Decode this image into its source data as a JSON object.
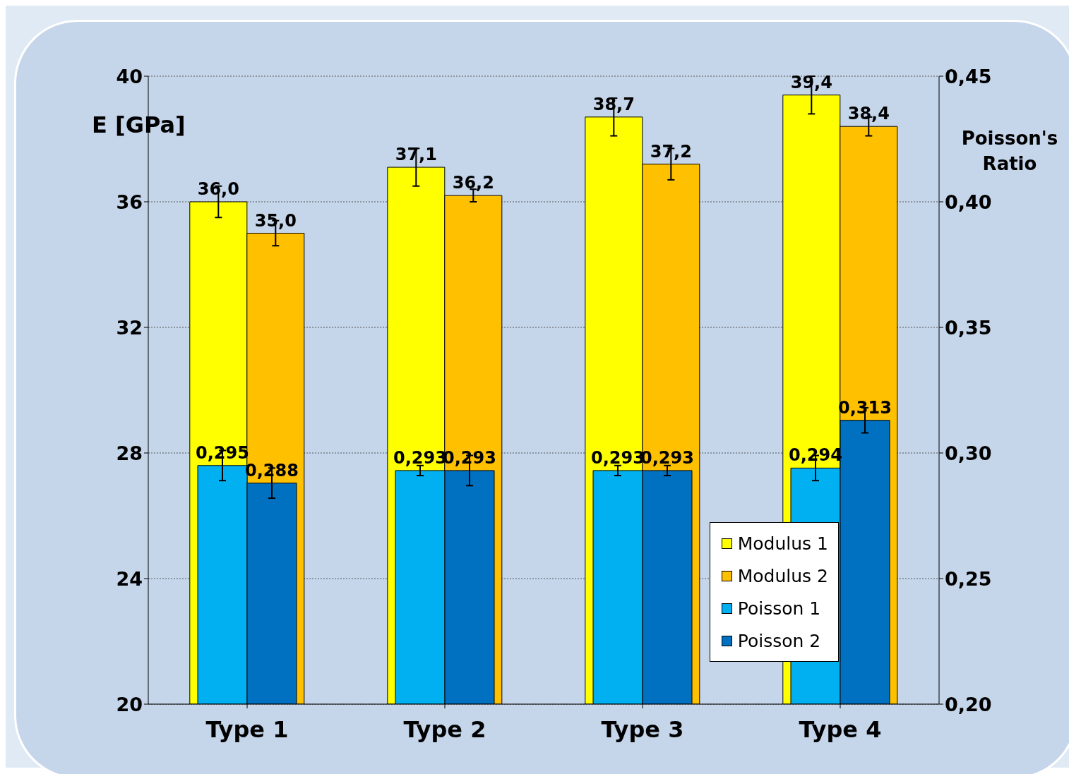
{
  "chart_data": {
    "type": "bar",
    "ylabel": "E [GPa]",
    "y2label": "Poisson's Ratio",
    "categories": [
      "Type 1",
      "Type 2",
      "Type 3",
      "Type 4"
    ],
    "series": [
      {
        "name": "Modulus 1",
        "color": "#ffff00",
        "values": [
          36.0,
          37.1,
          38.7,
          39.4
        ],
        "errors": [
          0.5,
          0.6,
          0.6,
          0.6
        ],
        "value_labels": [
          "36,0",
          "37,1",
          "38,7",
          "39,4"
        ]
      },
      {
        "name": "Modulus 2",
        "color": "#ffc000",
        "values": [
          35.0,
          36.2,
          37.2,
          38.4
        ],
        "errors": [
          0.4,
          0.2,
          0.5,
          0.3
        ],
        "value_labels": [
          "35,0",
          "36,2",
          "37,2",
          "38,4"
        ]
      },
      {
        "name": "Poisson 1",
        "color": "#00b0f0",
        "axis": "y2",
        "values": [
          0.295,
          0.293,
          0.293,
          0.294
        ],
        "errors": [
          0.006,
          0.002,
          0.002,
          0.005
        ],
        "value_labels": [
          "0,295",
          "0,293",
          "0,293",
          "0,294"
        ]
      },
      {
        "name": "Poisson 2",
        "color": "#0070c0",
        "axis": "y2",
        "values": [
          0.288,
          0.293,
          0.293,
          0.313
        ],
        "errors": [
          0.006,
          0.006,
          0.002,
          0.005
        ],
        "value_labels": [
          "0,288",
          "0,293",
          "0,293",
          "0,313"
        ]
      }
    ],
    "ylim": [
      20,
      40
    ],
    "yticks": [
      20,
      24,
      28,
      32,
      36,
      40
    ],
    "y2lim": [
      0.2,
      0.45
    ],
    "y2ticks": [
      {
        "value": 0.2,
        "label": "0,20"
      },
      {
        "value": 0.25,
        "label": "0,25"
      },
      {
        "value": 0.3,
        "label": "0,30"
      },
      {
        "value": 0.35,
        "label": "0,35"
      },
      {
        "value": 0.4,
        "label": "0,40"
      },
      {
        "value": 0.45,
        "label": "0,45"
      }
    ],
    "grid": "y",
    "legend": "bottom right"
  }
}
